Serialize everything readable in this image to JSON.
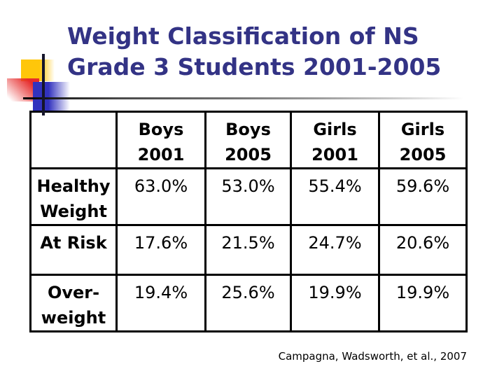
{
  "slide": {
    "title": {
      "lines": [
        "Weight Classification of NS",
        "Grade 3 Students 2001-2005"
      ],
      "color": "#333385"
    },
    "table": {
      "columns": [
        {
          "line1": "Boys",
          "line2": "2001"
        },
        {
          "line1": "Boys",
          "line2": "2005"
        },
        {
          "line1": "Girls",
          "line2": "2001"
        },
        {
          "line1": "Girls",
          "line2": "2005"
        }
      ],
      "rows": [
        {
          "label_line1": "Healthy",
          "label_line2": "Weight",
          "values": [
            "63.0%",
            "53.0%",
            "55.4%",
            "59.6%"
          ]
        },
        {
          "label_line1": "At Risk",
          "label_line2": "",
          "values": [
            "17.6%",
            "21.5%",
            "24.7%",
            "20.6%"
          ]
        },
        {
          "label_line1": "Over-",
          "label_line2": "weight",
          "values": [
            "19.4%",
            "25.6%",
            "19.9%",
            "19.9%"
          ]
        }
      ],
      "border_color": "#000000"
    },
    "caption": "Campagna, Wadsworth, et al., 2007",
    "decor_colors": {
      "yellow": "#FFC60A",
      "red": "#E62B2B",
      "blue": "#3232BE",
      "line_black": "#15152a",
      "divider_gray": "#6f6f6f"
    }
  },
  "chart_data": {
    "type": "table",
    "title": "Weight Classification of NS Grade 3 Students 2001-2005",
    "categories": [
      "Boys 2001",
      "Boys 2005",
      "Girls 2001",
      "Girls 2005"
    ],
    "series": [
      {
        "name": "Healthy Weight",
        "values": [
          63.0,
          53.0,
          55.4,
          59.6
        ]
      },
      {
        "name": "At Risk",
        "values": [
          17.6,
          21.5,
          24.7,
          20.6
        ]
      },
      {
        "name": "Overweight",
        "values": [
          19.4,
          25.6,
          19.9,
          19.9
        ]
      }
    ],
    "unit": "%",
    "source": "Campagna, Wadsworth, et al., 2007"
  }
}
